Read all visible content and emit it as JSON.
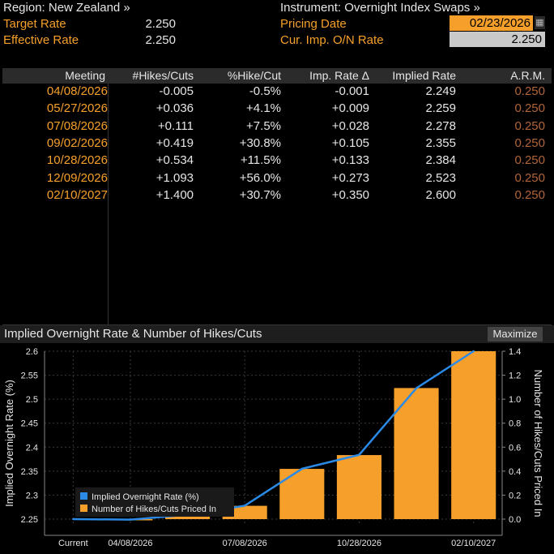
{
  "top": {
    "region_label": "Region: New Zealand »",
    "target_rate_label": "Target Rate",
    "target_rate_value": "2.250",
    "effective_rate_label": "Effective Rate",
    "effective_rate_value": "2.250",
    "instrument_label": "Instrument: Overnight Index Swaps »",
    "pricing_date_label": "Pricing Date",
    "pricing_date_value": "02/23/2026",
    "cur_imp_label": "Cur. Imp. O/N Rate",
    "cur_imp_value": "2.250"
  },
  "table": {
    "headers": [
      "Meeting",
      "#Hikes/Cuts",
      "%Hike/Cut",
      "Imp. Rate Δ",
      "Implied Rate",
      "A.R.M."
    ],
    "rows": [
      [
        "04/08/2026",
        "-0.005",
        "-0.5%",
        "-0.001",
        "2.249",
        "0.250"
      ],
      [
        "05/27/2026",
        "+0.036",
        "+4.1%",
        "+0.009",
        "2.259",
        "0.250"
      ],
      [
        "07/08/2026",
        "+0.111",
        "+7.5%",
        "+0.028",
        "2.278",
        "0.250"
      ],
      [
        "09/02/2026",
        "+0.419",
        "+30.8%",
        "+0.105",
        "2.355",
        "0.250"
      ],
      [
        "10/28/2026",
        "+0.534",
        "+11.5%",
        "+0.133",
        "2.384",
        "0.250"
      ],
      [
        "12/09/2026",
        "+1.093",
        "+56.0%",
        "+0.273",
        "2.523",
        "0.250"
      ],
      [
        "02/10/2027",
        "+1.400",
        "+30.7%",
        "+0.350",
        "2.600",
        "0.250"
      ]
    ]
  },
  "chart_panel": {
    "title": "Implied Overnight Rate & Number of Hikes/Cuts",
    "maximize_label": "Maximize"
  },
  "chart_data": {
    "type": "bar",
    "x": [
      "Current",
      "04/08/2026",
      "05/27/2026",
      "07/08/2026",
      "09/02/2026",
      "10/28/2026",
      "12/09/2026",
      "02/10/2027"
    ],
    "x_tick_labels": [
      "Current",
      "04/08/2026",
      "07/08/2026",
      "10/28/2026",
      "02/10/2027"
    ],
    "series": [
      {
        "name": "Implied Overnight Rate (%)",
        "kind": "line",
        "axis": "left",
        "color": "#2b8ae6",
        "values": [
          2.25,
          2.249,
          2.259,
          2.278,
          2.355,
          2.384,
          2.523,
          2.6
        ]
      },
      {
        "name": "Number of Hikes/Cuts Priced In",
        "kind": "bar",
        "axis": "right",
        "color": "#f6a02b",
        "values": [
          null,
          -0.005,
          0.036,
          0.111,
          0.419,
          0.534,
          1.093,
          1.4
        ]
      }
    ],
    "ylabel": "Implied Overnight Rate (%)",
    "ylabel_right": "Number of Hikes/Cuts Priced In",
    "ylim": [
      2.25,
      2.6
    ],
    "ylim_right": [
      0.0,
      1.4
    ],
    "yticks": [
      "2.6",
      "2.55",
      "2.5",
      "2.45",
      "2.4",
      "2.35",
      "2.3",
      "2.25"
    ],
    "yticks_right": [
      "1.4",
      "1.2",
      "1.0",
      "0.8",
      "0.6",
      "0.4",
      "0.2",
      "0.0"
    ],
    "grid": true,
    "legend_position": "bottom-left"
  }
}
